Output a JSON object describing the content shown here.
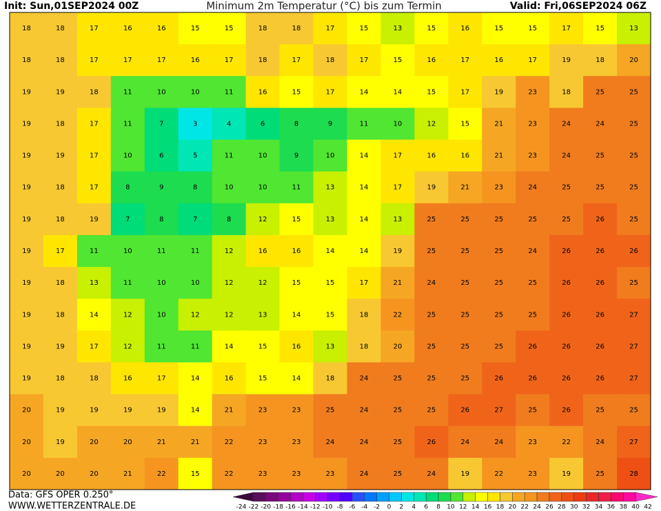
{
  "header": {
    "init": "Init: Sun,01SEP2024 00Z",
    "title": "Minimum 2m Temperatur (°C) bis zum Termin",
    "valid": "Valid: Fri,06SEP2024 06Z"
  },
  "grid": {
    "rows": [
      [
        18,
        18,
        17,
        16,
        16,
        15,
        15,
        18,
        18,
        17,
        15,
        13,
        15,
        16,
        15,
        15,
        17,
        15,
        13
      ],
      [
        18,
        18,
        17,
        17,
        17,
        16,
        17,
        18,
        17,
        18,
        17,
        15,
        16,
        17,
        16,
        17,
        19,
        18,
        20
      ],
      [
        19,
        19,
        18,
        11,
        10,
        10,
        11,
        16,
        15,
        17,
        14,
        14,
        15,
        17,
        19,
        23,
        18,
        25,
        25
      ],
      [
        19,
        18,
        17,
        11,
        7,
        3,
        4,
        6,
        8,
        9,
        11,
        10,
        12,
        15,
        21,
        23,
        24,
        24,
        25
      ],
      [
        19,
        19,
        17,
        10,
        6,
        5,
        11,
        10,
        9,
        10,
        14,
        17,
        16,
        16,
        21,
        23,
        24,
        25,
        25
      ],
      [
        19,
        18,
        17,
        8,
        9,
        8,
        10,
        10,
        11,
        13,
        14,
        17,
        19,
        21,
        23,
        24,
        25,
        25,
        25
      ],
      [
        19,
        18,
        19,
        7,
        8,
        7,
        8,
        12,
        15,
        13,
        14,
        13,
        25,
        25,
        25,
        25,
        25,
        26,
        25
      ],
      [
        19,
        17,
        11,
        10,
        11,
        11,
        12,
        16,
        16,
        14,
        14,
        19,
        25,
        25,
        25,
        24,
        26,
        26,
        26
      ],
      [
        19,
        18,
        13,
        11,
        10,
        10,
        12,
        12,
        15,
        15,
        17,
        21,
        24,
        25,
        25,
        25,
        26,
        26,
        25
      ],
      [
        19,
        18,
        14,
        12,
        10,
        12,
        12,
        13,
        14,
        15,
        18,
        22,
        25,
        25,
        25,
        25,
        26,
        26,
        27
      ],
      [
        19,
        19,
        17,
        12,
        11,
        11,
        14,
        15,
        16,
        13,
        18,
        20,
        25,
        25,
        25,
        26,
        26,
        26,
        27
      ],
      [
        19,
        18,
        18,
        16,
        17,
        14,
        16,
        15,
        14,
        18,
        24,
        25,
        25,
        25,
        26,
        26,
        26,
        26,
        27
      ],
      [
        20,
        19,
        19,
        19,
        19,
        14,
        21,
        23,
        23,
        25,
        24,
        25,
        25,
        26,
        27,
        25,
        26,
        25,
        25
      ],
      [
        20,
        19,
        20,
        20,
        21,
        21,
        22,
        23,
        23,
        24,
        24,
        25,
        26,
        24,
        24,
        23,
        22,
        24,
        27
      ],
      [
        20,
        20,
        20,
        21,
        22,
        15,
        22,
        23,
        23,
        23,
        24,
        25,
        24,
        19,
        22,
        23,
        19,
        25,
        28
      ]
    ]
  },
  "legend": {
    "ticks": [
      -24,
      -22,
      -20,
      -18,
      -16,
      -14,
      -12,
      -10,
      -8,
      -6,
      -4,
      -2,
      0,
      2,
      4,
      6,
      8,
      10,
      12,
      14,
      16,
      18,
      20,
      22,
      24,
      26,
      28,
      30,
      32,
      34,
      36,
      38,
      40,
      42
    ],
    "colors": [
      "#3c0a3c",
      "#5a0f5a",
      "#780a78",
      "#9600a0",
      "#b400c8",
      "#c800e6",
      "#a000ff",
      "#7800ff",
      "#5000ff",
      "#2850ff",
      "#0078ff",
      "#00a0ff",
      "#00c8ff",
      "#00e6e6",
      "#00e6b4",
      "#00dc78",
      "#1edc50",
      "#50e632",
      "#c8f000",
      "#ffff00",
      "#ffe600",
      "#f8c832",
      "#f5a623",
      "#f59520",
      "#f07c1e",
      "#f0641a",
      "#ee5014",
      "#ec3c14",
      "#ea2828",
      "#f01e46",
      "#f50a6e",
      "#fa0aa0",
      "#ff28c8"
    ]
  },
  "footer": {
    "data": "Data: GFS OPER 0.250°",
    "site": "WWW.WETTERZENTRALE.DE"
  }
}
